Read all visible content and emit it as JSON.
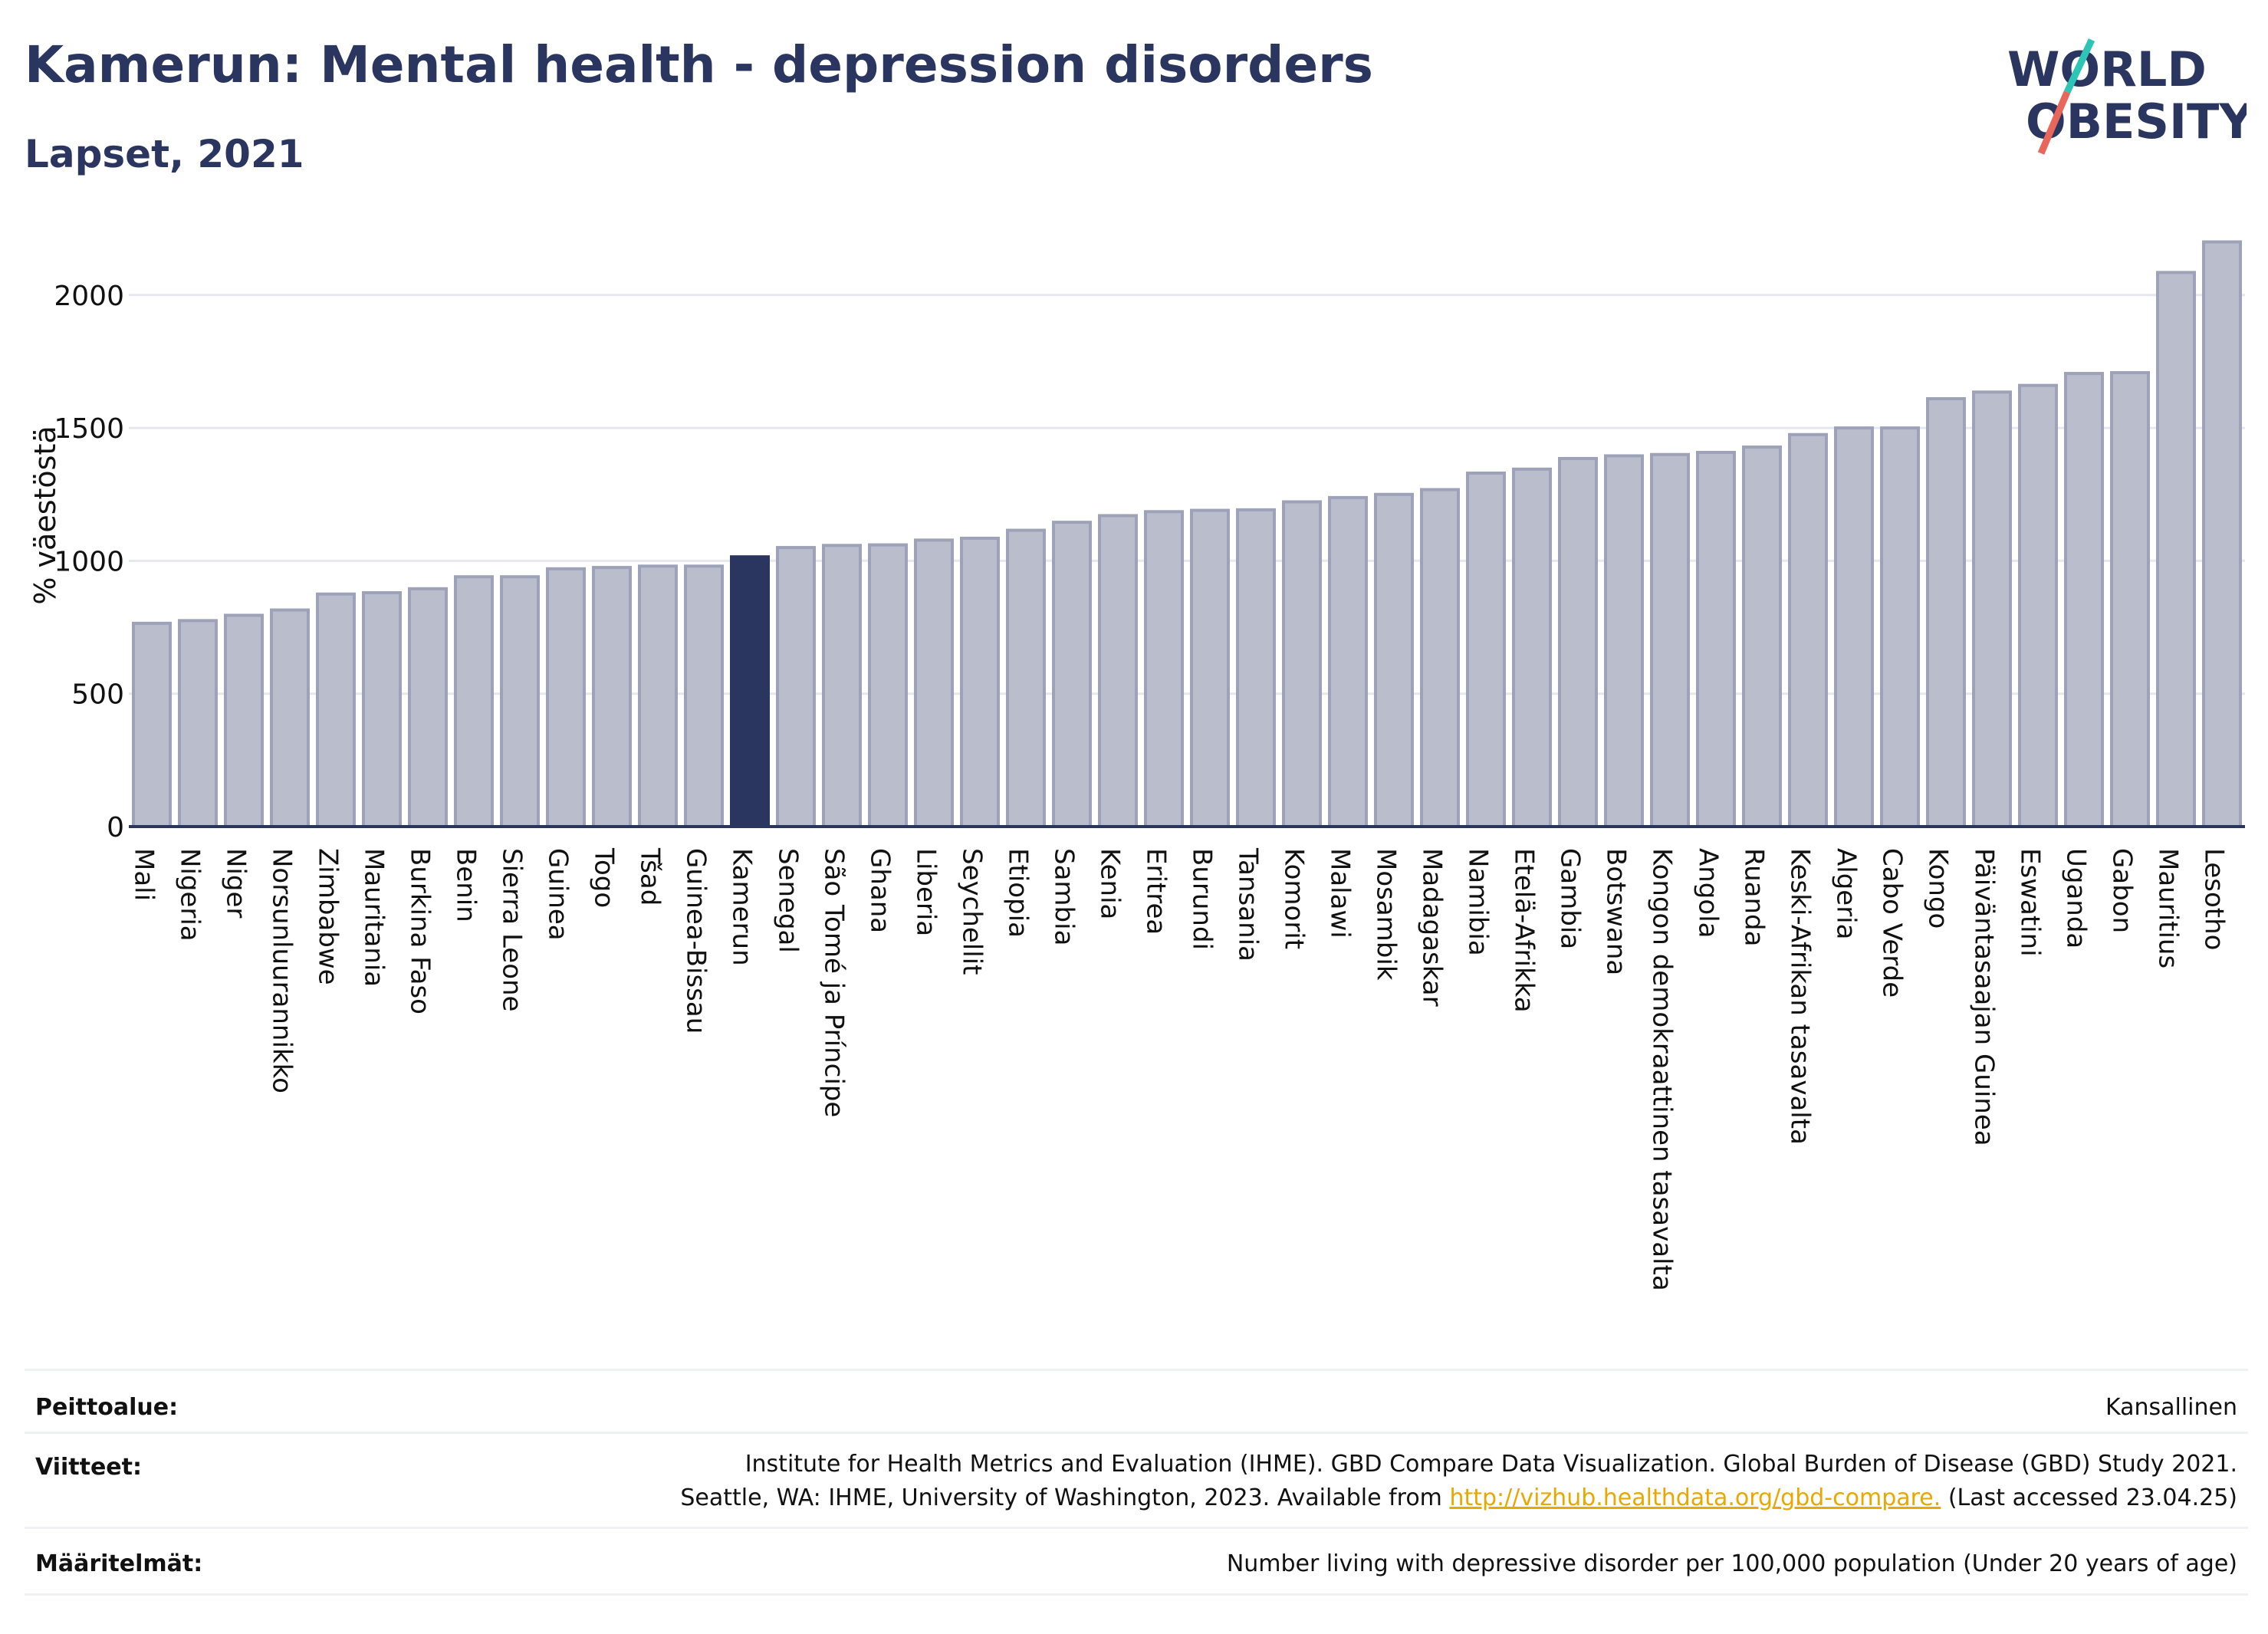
{
  "header": {
    "title": "Kamerun: Mental health - depression disorders",
    "subtitle": "Lapset, 2021"
  },
  "logo": {
    "line1": "WORLD",
    "line2": "OBESITY"
  },
  "chart_data": {
    "type": "bar",
    "title": "Kamerun: Mental health - depression disorders",
    "subtitle": "Lapset, 2021",
    "ylabel": "% väestöstä",
    "xlabel": "",
    "ylim": [
      0,
      2300
    ],
    "yticks": [
      0,
      500,
      1000,
      1500,
      2000
    ],
    "grid": true,
    "highlight": "Kamerun",
    "colors": {
      "bar": "#b9bdcc",
      "bar_stroke": "#9da2b8",
      "highlight": "#2a3560",
      "grid": "#e6e8ef",
      "axis": "#2a3560"
    },
    "categories": [
      "Mali",
      "Nigeria",
      "Niger",
      "Norsunluurannikko",
      "Zimbabwe",
      "Mauritania",
      "Burkina Faso",
      "Benin",
      "Sierra Leone",
      "Guinea",
      "Togo",
      "Tšad",
      "Guinea-Bissau",
      "Kamerun",
      "Senegal",
      "São Tomé ja Príncipe",
      "Ghana",
      "Liberia",
      "Seychellit",
      "Etiopia",
      "Sambia",
      "Kenia",
      "Eritrea",
      "Burundi",
      "Tansania",
      "Komorit",
      "Malawi",
      "Mosambik",
      "Madagaskar",
      "Namibia",
      "Etelä-Afrikka",
      "Gambia",
      "Botswana",
      "Kongon demokraattinen tasavalta",
      "Angola",
      "Ruanda",
      "Keski-Afrikan tasavalta",
      "Algeria",
      "Cabo Verde",
      "Kongo",
      "Päiväntasaajan Guinea",
      "Eswatini",
      "Uganda",
      "Gabon",
      "Mauritius",
      "Lesotho"
    ],
    "values": [
      765,
      775,
      795,
      815,
      875,
      880,
      895,
      940,
      940,
      970,
      975,
      980,
      980,
      1015,
      1050,
      1058,
      1060,
      1078,
      1085,
      1115,
      1145,
      1170,
      1185,
      1190,
      1192,
      1222,
      1238,
      1250,
      1268,
      1330,
      1345,
      1385,
      1395,
      1400,
      1408,
      1428,
      1475,
      1500,
      1500,
      1610,
      1635,
      1660,
      1705,
      1708,
      2085,
      2200
    ]
  },
  "footer": {
    "coverage_label": "Peittoalue:",
    "coverage_value": "Kansallinen",
    "references_label": "Viitteet:",
    "references_line1": "Institute for Health Metrics and Evaluation (IHME). GBD Compare Data Visualization. Global Burden of Disease (GBD) Study 2021.",
    "references_line2_pre": "Seattle, WA: IHME, University of Washington, 2023. Available from ",
    "references_link": "http://vizhub.healthdata.org/gbd-compare.",
    "references_line2_post": " (Last accessed 23.04.25)",
    "definitions_label": "Määritelmät:",
    "definitions_value": "Number living with depressive disorder per 100,000 population (Under 20 years of age)"
  }
}
